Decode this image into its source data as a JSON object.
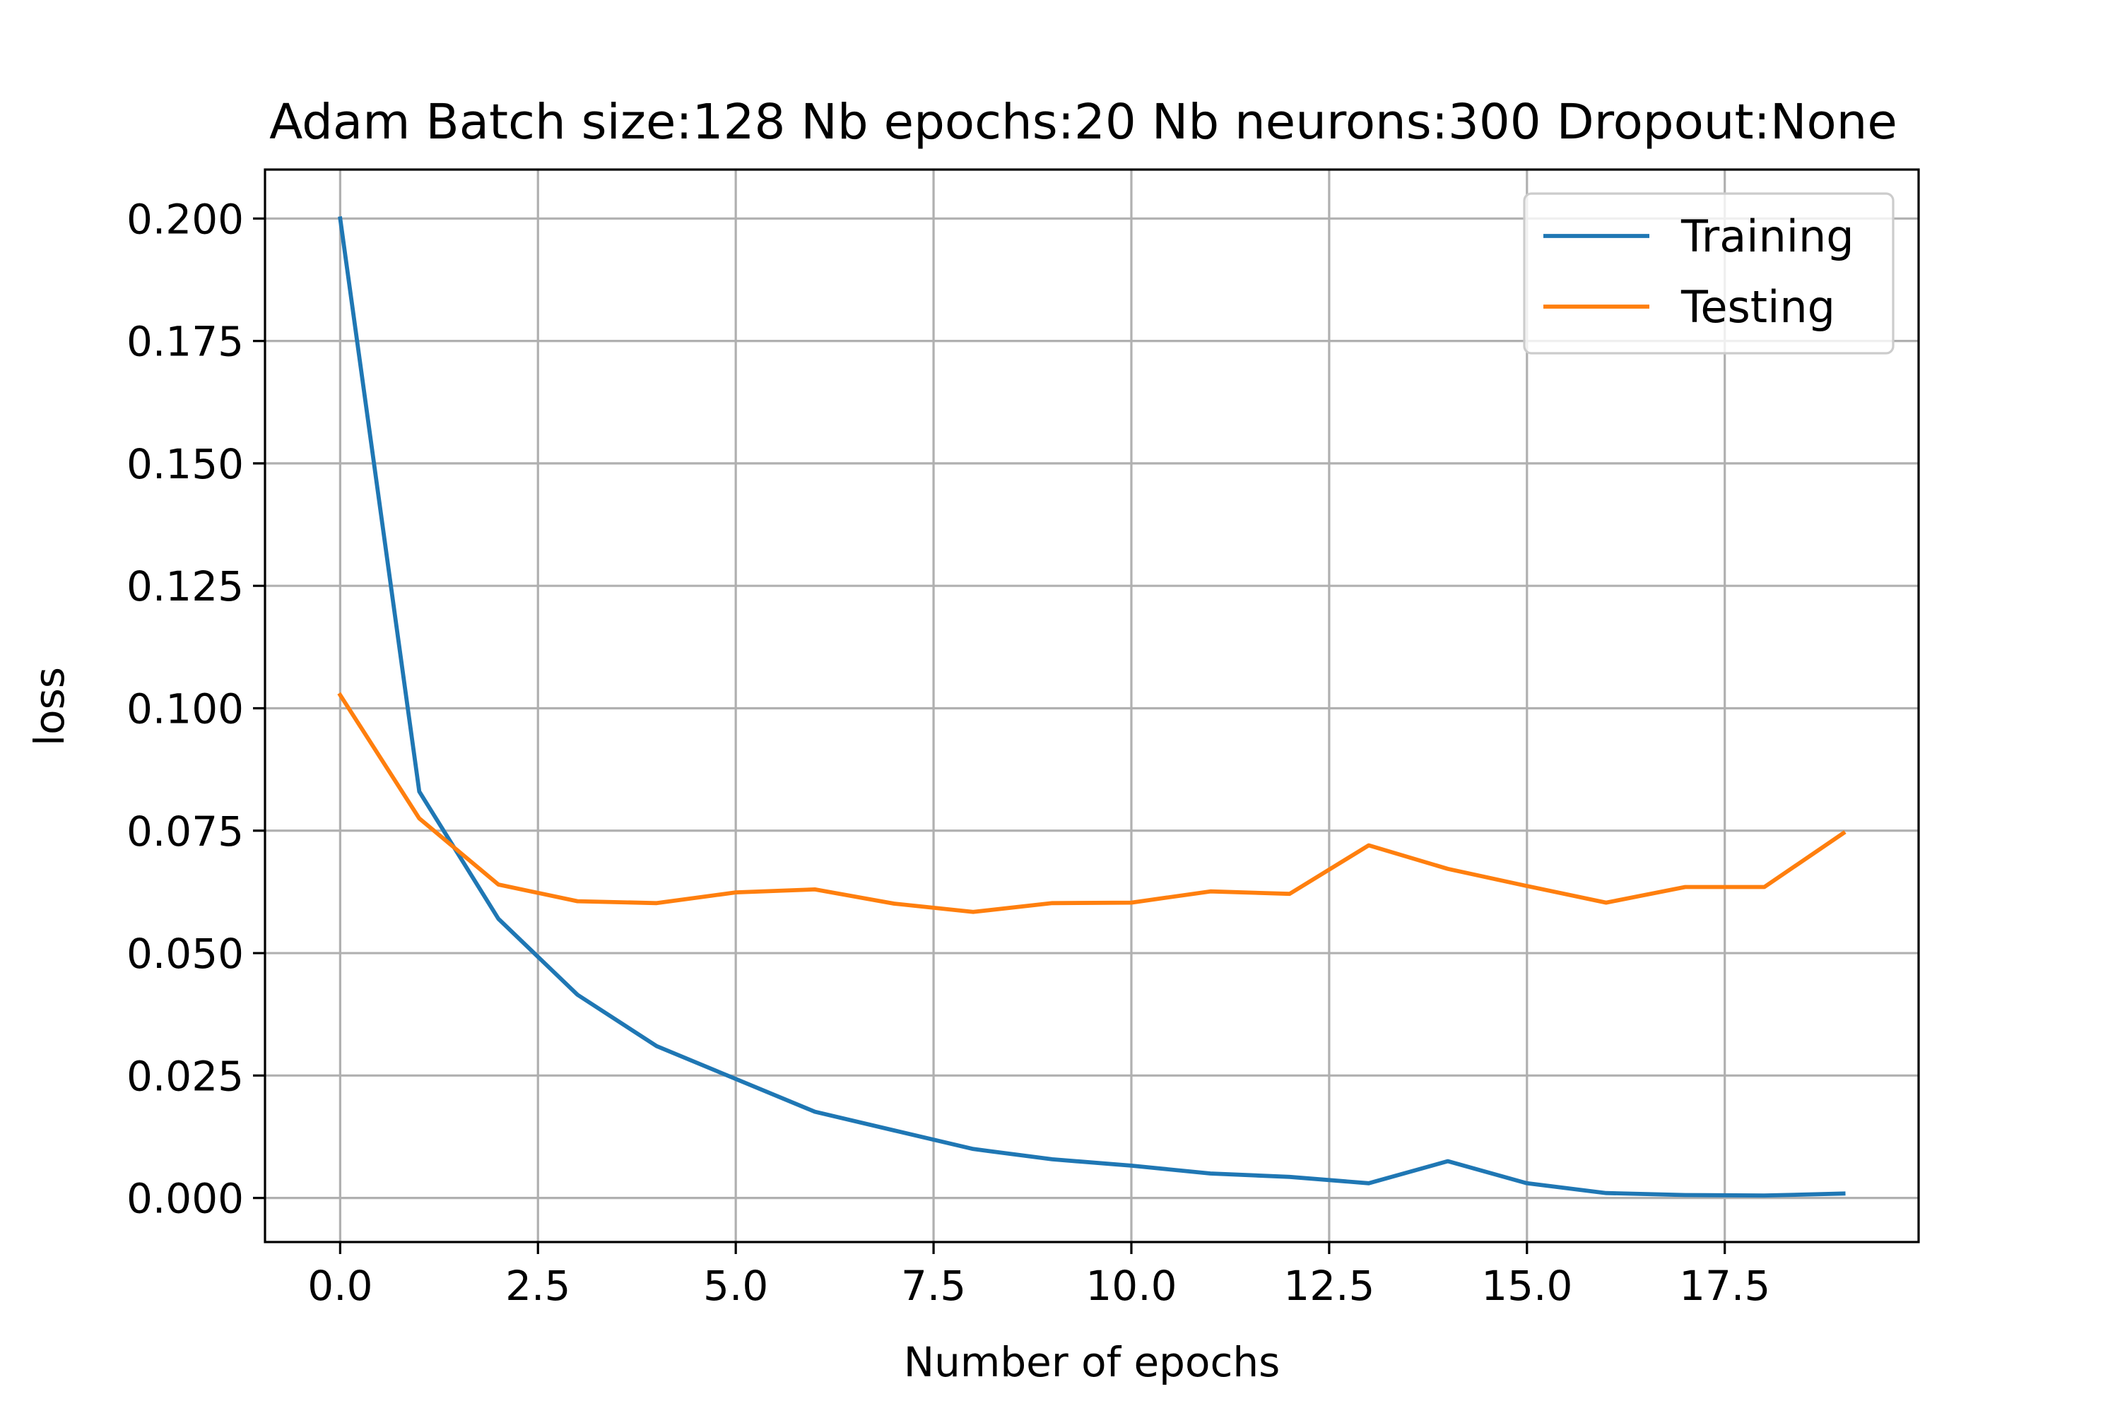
{
  "chart_data": {
    "type": "line",
    "title": "Adam Batch size:128 Nb epochs:20 Nb neurons:300 Dropout:None",
    "xlabel": "Number of epochs",
    "ylabel": "loss",
    "xlim": [
      -0.95,
      19.95
    ],
    "ylim": [
      -0.009,
      0.21
    ],
    "xticks": [
      0.0,
      2.5,
      5.0,
      7.5,
      10.0,
      12.5,
      15.0,
      17.5
    ],
    "xtick_labels": [
      "0.0",
      "2.5",
      "5.0",
      "7.5",
      "10.0",
      "12.5",
      "15.0",
      "17.5"
    ],
    "yticks": [
      0.0,
      0.025,
      0.05,
      0.075,
      0.1,
      0.125,
      0.15,
      0.175,
      0.2
    ],
    "ytick_labels": [
      "0.000",
      "0.025",
      "0.050",
      "0.075",
      "0.100",
      "0.125",
      "0.150",
      "0.175",
      "0.200"
    ],
    "grid": true,
    "legend_position": "top-right",
    "x": [
      0,
      1,
      2,
      3,
      4,
      5,
      6,
      7,
      8,
      9,
      10,
      11,
      12,
      13,
      14,
      15,
      16,
      17,
      18,
      19
    ],
    "series": [
      {
        "name": "Training",
        "color": "#1f77b4",
        "values": [
          0.2,
          0.083,
          0.057,
          0.0415,
          0.031,
          0.0243,
          0.0176,
          0.0138,
          0.01,
          0.0079,
          0.0066,
          0.005,
          0.0043,
          0.003,
          0.0075,
          0.003,
          0.001,
          0.0006,
          0.0005,
          0.0009
        ]
      },
      {
        "name": "Testing",
        "color": "#ff7f0e",
        "values": [
          0.1027,
          0.0775,
          0.064,
          0.0606,
          0.0602,
          0.0624,
          0.063,
          0.0601,
          0.0584,
          0.0602,
          0.0603,
          0.0626,
          0.0621,
          0.072,
          0.0672,
          0.0637,
          0.0603,
          0.0635,
          0.0635,
          0.0745
        ]
      }
    ]
  }
}
